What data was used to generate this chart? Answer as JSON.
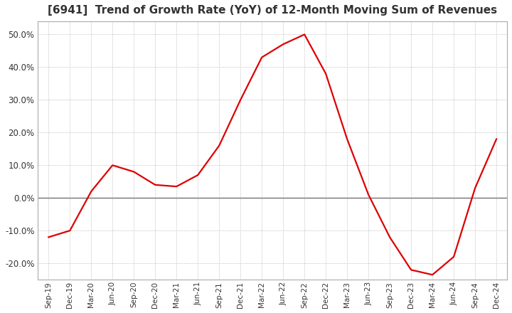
{
  "title": "[6941]  Trend of Growth Rate (YoY) of 12-Month Moving Sum of Revenues",
  "title_fontsize": 11,
  "title_color": "#333333",
  "line_color": "#dd0000",
  "background_color": "#ffffff",
  "grid_color": "#aaaaaa",
  "ylim": [
    -0.25,
    0.54
  ],
  "yticks": [
    -0.2,
    -0.1,
    0.0,
    0.1,
    0.2,
    0.3,
    0.4,
    0.5
  ],
  "x_labels": [
    "Sep-19",
    "Dec-19",
    "Mar-20",
    "Jun-20",
    "Sep-20",
    "Dec-20",
    "Mar-21",
    "Jun-21",
    "Sep-21",
    "Dec-21",
    "Mar-22",
    "Jun-22",
    "Sep-22",
    "Dec-22",
    "Mar-23",
    "Jun-23",
    "Sep-23",
    "Dec-23",
    "Mar-24",
    "Jun-24",
    "Sep-24",
    "Dec-24"
  ],
  "y_values": [
    -0.12,
    -0.1,
    0.02,
    0.1,
    0.08,
    0.04,
    0.035,
    0.07,
    0.16,
    0.3,
    0.43,
    0.47,
    0.5,
    0.38,
    0.18,
    0.01,
    -0.12,
    -0.22,
    -0.235,
    -0.18,
    0.03,
    0.18
  ]
}
